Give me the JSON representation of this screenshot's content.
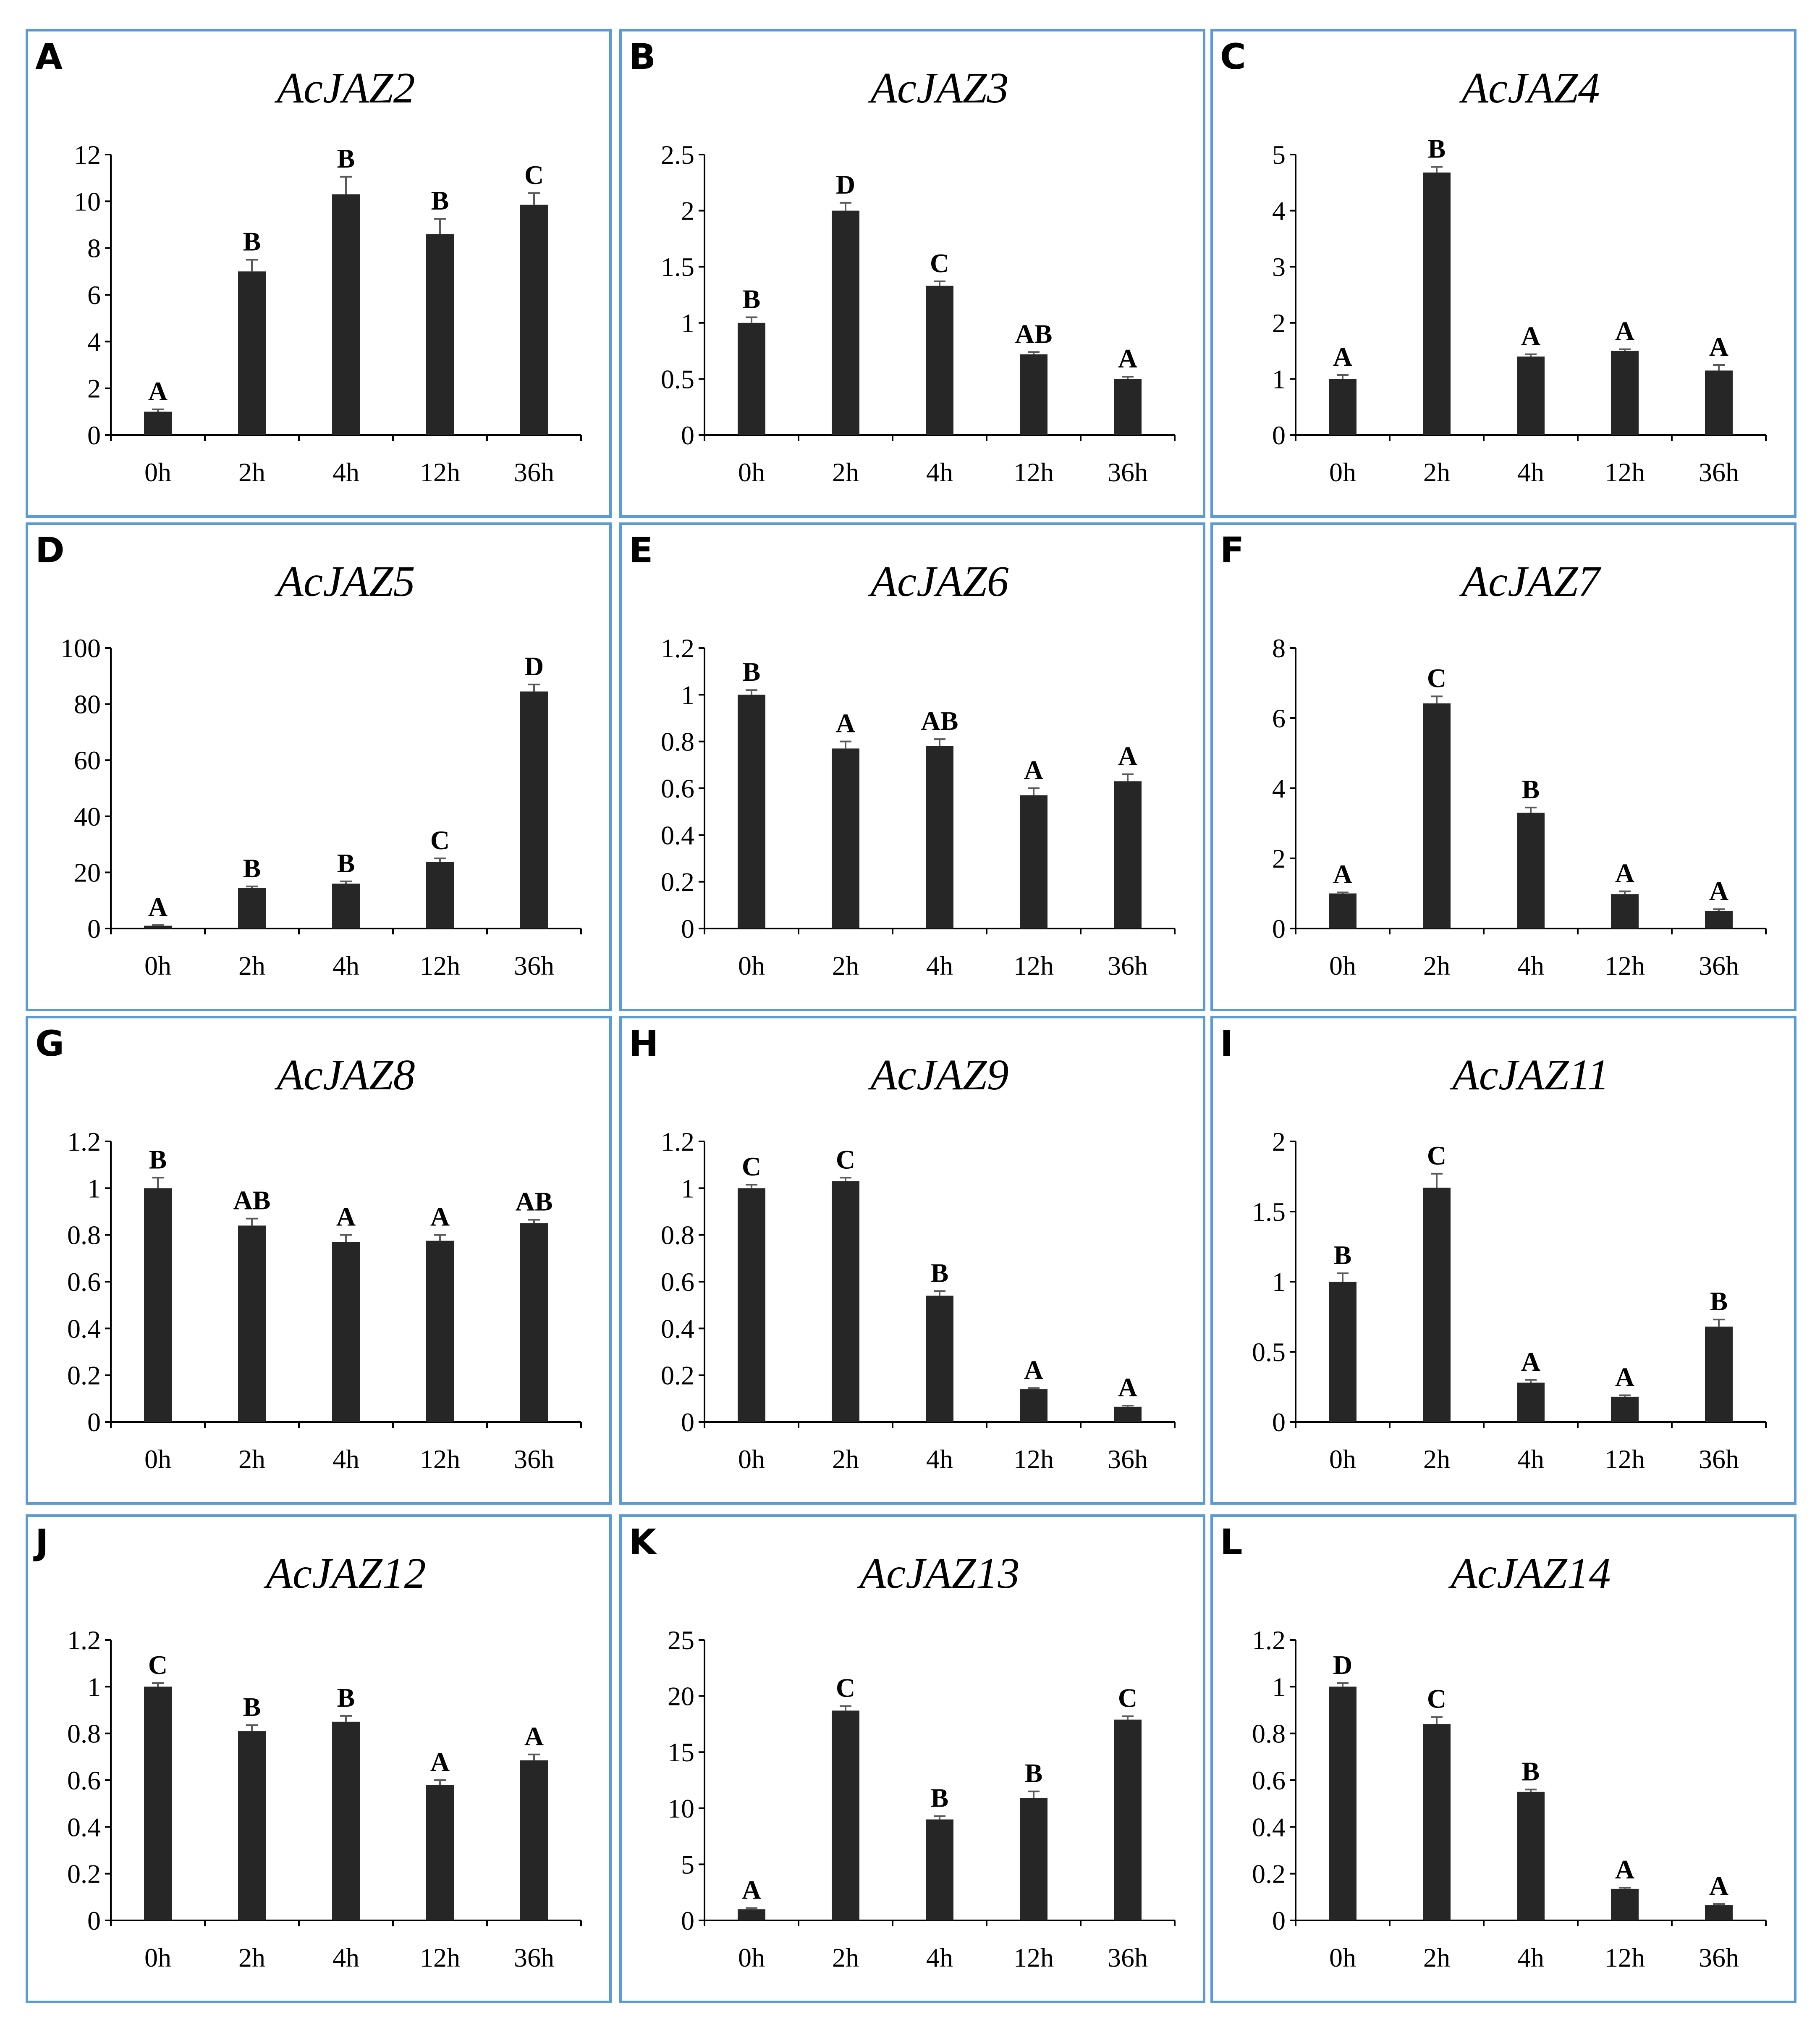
{
  "figure": {
    "colors": {
      "frame": "#5b9bd5",
      "bar": "#262626",
      "error_bar": "#595959",
      "axis": "#000000"
    }
  },
  "chart_data": [
    {
      "panel": "A",
      "title": "AcJAZ2",
      "type": "bar",
      "categories": [
        "0h",
        "2h",
        "4h",
        "12h",
        "36h"
      ],
      "values": [
        1.0,
        7.0,
        10.3,
        8.6,
        9.85
      ],
      "errors": [
        0.1,
        0.5,
        0.75,
        0.65,
        0.5
      ],
      "labels": [
        "A",
        "B",
        "B",
        "B",
        "C"
      ],
      "ylim": [
        0,
        12
      ],
      "yticks": [
        "0",
        "2",
        "4",
        "6",
        "8",
        "10",
        "12"
      ]
    },
    {
      "panel": "B",
      "title": "AcJAZ3",
      "type": "bar",
      "categories": [
        "0h",
        "2h",
        "4h",
        "12h",
        "36h"
      ],
      "values": [
        1.0,
        2.0,
        1.33,
        0.72,
        0.5
      ],
      "errors": [
        0.05,
        0.07,
        0.04,
        0.02,
        0.02
      ],
      "labels": [
        "B",
        "D",
        "C",
        "AB",
        "A"
      ],
      "ylim": [
        0,
        2.5
      ],
      "yticks": [
        "0",
        "0.5",
        "1",
        "1.5",
        "2",
        "2.5"
      ]
    },
    {
      "panel": "C",
      "title": "AcJAZ4",
      "type": "bar",
      "categories": [
        "0h",
        "2h",
        "4h",
        "12h",
        "36h"
      ],
      "values": [
        1.0,
        4.68,
        1.4,
        1.5,
        1.15
      ],
      "errors": [
        0.07,
        0.1,
        0.04,
        0.03,
        0.1
      ],
      "labels": [
        "A",
        "B",
        "A",
        "A",
        "A"
      ],
      "ylim": [
        0,
        5
      ],
      "yticks": [
        "0",
        "1",
        "2",
        "3",
        "4",
        "5"
      ]
    },
    {
      "panel": "D",
      "title": "AcJAZ5",
      "type": "bar",
      "categories": [
        "0h",
        "2h",
        "4h",
        "12h",
        "36h"
      ],
      "values": [
        1.0,
        14.5,
        16.0,
        23.8,
        84.5
      ],
      "errors": [
        0.2,
        0.5,
        0.8,
        1.2,
        2.5
      ],
      "labels": [
        "A",
        "B",
        "B",
        "C",
        "D"
      ],
      "ylim": [
        0,
        100
      ],
      "yticks": [
        "0",
        "20",
        "40",
        "60",
        "80",
        "100"
      ]
    },
    {
      "panel": "E",
      "title": "AcJAZ6",
      "type": "bar",
      "categories": [
        "0h",
        "2h",
        "4h",
        "12h",
        "36h"
      ],
      "values": [
        1.0,
        0.77,
        0.78,
        0.57,
        0.63
      ],
      "errors": [
        0.02,
        0.03,
        0.03,
        0.03,
        0.03
      ],
      "labels": [
        "B",
        "A",
        "AB",
        "A",
        "A"
      ],
      "ylim": [
        0,
        1.2
      ],
      "yticks": [
        "0",
        "0.2",
        "0.4",
        "0.6",
        "0.8",
        "1",
        "1.2"
      ]
    },
    {
      "panel": "F",
      "title": "AcJAZ7",
      "type": "bar",
      "categories": [
        "0h",
        "2h",
        "4h",
        "12h",
        "36h"
      ],
      "values": [
        1.0,
        6.42,
        3.3,
        0.98,
        0.5
      ],
      "errors": [
        0.03,
        0.2,
        0.15,
        0.08,
        0.05
      ],
      "labels": [
        "A",
        "C",
        "B",
        "A",
        "A"
      ],
      "ylim": [
        0,
        8
      ],
      "yticks": [
        "0",
        "2",
        "4",
        "6",
        "8"
      ]
    },
    {
      "panel": "G",
      "title": "AcJAZ8",
      "type": "bar",
      "categories": [
        "0h",
        "2h",
        "4h",
        "12h",
        "36h"
      ],
      "values": [
        1.0,
        0.84,
        0.77,
        0.775,
        0.85
      ],
      "errors": [
        0.045,
        0.03,
        0.03,
        0.025,
        0.015
      ],
      "labels": [
        "B",
        "AB",
        "A",
        "A",
        "AB"
      ],
      "ylim": [
        0,
        1.2
      ],
      "yticks": [
        "0",
        "0.2",
        "0.4",
        "0.6",
        "0.8",
        "1",
        "1.2"
      ]
    },
    {
      "panel": "H",
      "title": "AcJAZ9",
      "type": "bar",
      "categories": [
        "0h",
        "2h",
        "4h",
        "12h",
        "36h"
      ],
      "values": [
        1.0,
        1.03,
        0.54,
        0.14,
        0.065
      ],
      "errors": [
        0.015,
        0.015,
        0.02,
        0.005,
        0.005
      ],
      "labels": [
        "C",
        "C",
        "B",
        "A",
        "A"
      ],
      "ylim": [
        0,
        1.2
      ],
      "yticks": [
        "0",
        "0.2",
        "0.4",
        "0.6",
        "0.8",
        "1",
        "1.2"
      ]
    },
    {
      "panel": "I",
      "title": "AcJAZ11",
      "type": "bar",
      "categories": [
        "0h",
        "2h",
        "4h",
        "12h",
        "36h"
      ],
      "values": [
        1.0,
        1.67,
        0.28,
        0.18,
        0.68
      ],
      "errors": [
        0.06,
        0.1,
        0.02,
        0.01,
        0.05
      ],
      "labels": [
        "B",
        "C",
        "A",
        "A",
        "B"
      ],
      "ylim": [
        0,
        2
      ],
      "yticks": [
        "0",
        "0.5",
        "1",
        "1.5",
        "2"
      ]
    },
    {
      "panel": "J",
      "title": "AcJAZ12",
      "type": "bar",
      "categories": [
        "0h",
        "2h",
        "4h",
        "12h",
        "36h"
      ],
      "values": [
        1.0,
        0.81,
        0.85,
        0.58,
        0.685
      ],
      "errors": [
        0.015,
        0.025,
        0.025,
        0.02,
        0.025
      ],
      "labels": [
        "C",
        "B",
        "B",
        "A",
        "A"
      ],
      "ylim": [
        0,
        1.2
      ],
      "yticks": [
        "0",
        "0.2",
        "0.4",
        "0.6",
        "0.8",
        "1",
        "1.2"
      ]
    },
    {
      "panel": "K",
      "title": "AcJAZ13",
      "type": "bar",
      "categories": [
        "0h",
        "2h",
        "4h",
        "12h",
        "36h"
      ],
      "values": [
        1.0,
        18.7,
        9.0,
        10.9,
        17.9
      ],
      "errors": [
        0.1,
        0.4,
        0.3,
        0.6,
        0.3
      ],
      "labels": [
        "A",
        "C",
        "B",
        "B",
        "C"
      ],
      "ylim": [
        0,
        25
      ],
      "yticks": [
        "0",
        "5",
        "10",
        "15",
        "20",
        "25"
      ]
    },
    {
      "panel": "L",
      "title": "AcJAZ14",
      "type": "bar",
      "categories": [
        "0h",
        "2h",
        "4h",
        "12h",
        "36h"
      ],
      "values": [
        1.0,
        0.84,
        0.55,
        0.135,
        0.065
      ],
      "errors": [
        0.015,
        0.03,
        0.01,
        0.005,
        0.005
      ],
      "labels": [
        "D",
        "C",
        "B",
        "A",
        "A"
      ],
      "ylim": [
        0,
        1.2
      ],
      "yticks": [
        "0",
        "0.2",
        "0.4",
        "0.6",
        "0.8",
        "1",
        "1.2"
      ]
    }
  ]
}
